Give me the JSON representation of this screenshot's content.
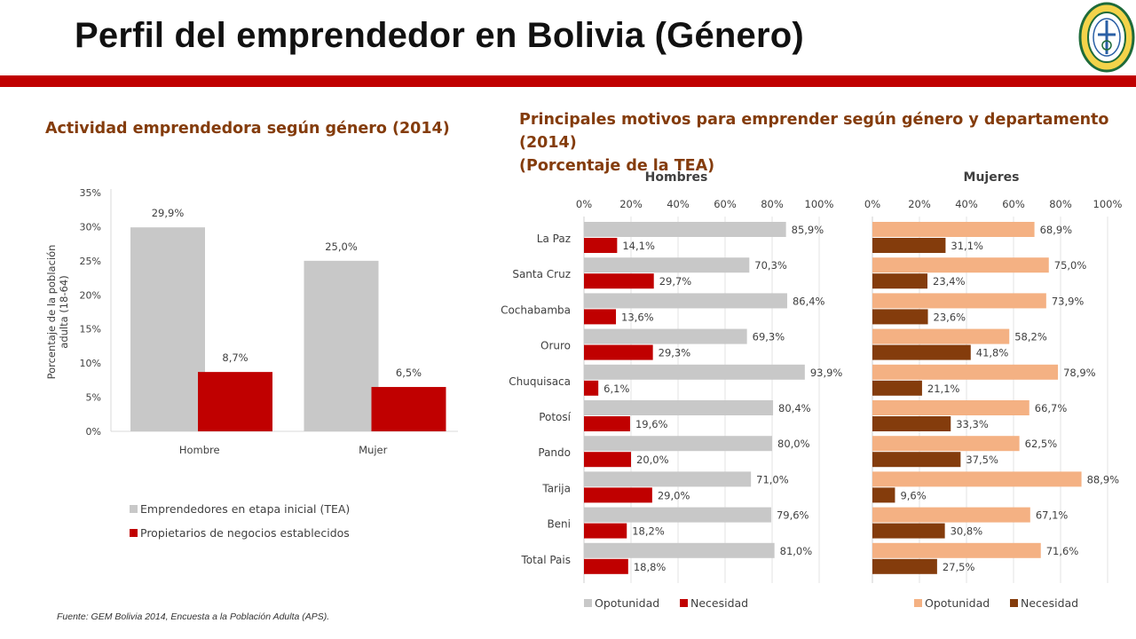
{
  "header": {
    "title": "Perfil del emprendedor en Bolivia (Género)"
  },
  "left_chart_heading": "Actividad emprendedora según género (2014)",
  "right_chart_heading_line1": "Principales motivos para emprender según género y departamento (2014)",
  "right_chart_heading_line2": "(Porcentaje de la TEA)",
  "source": "Fuente: GEM Bolivia 2014, Encuesta a la Población Adulta (APS).",
  "colors": {
    "accent_red": "#c00000",
    "heading_brown": "#843c0c",
    "gray_bar": "#c8c8c8",
    "peach_bar": "#f4b183",
    "brown_bar": "#843c0c"
  },
  "chart_data": [
    {
      "type": "bar",
      "title": "Actividad emprendedora según género (2014)",
      "categories": [
        "Hombre",
        "Mujer"
      ],
      "ylabel": "Porcentaje de la población adulta (18-64)",
      "ylim": [
        0,
        35
      ],
      "yticks": [
        "0%",
        "5%",
        "10%",
        "15%",
        "20%",
        "25%",
        "30%",
        "35%"
      ],
      "legend_position": "bottom",
      "series": [
        {
          "name": "Emprendedores en etapa inicial (TEA)",
          "values": [
            29.9,
            25.0
          ],
          "labels": [
            "29,9%",
            "25,0%"
          ],
          "color": "#c8c8c8"
        },
        {
          "name": "Propietarios de negocios establecidos",
          "values": [
            8.7,
            6.5
          ],
          "labels": [
            "8,7%",
            "6,5%"
          ],
          "color": "#c00000"
        }
      ]
    },
    {
      "type": "bar",
      "orientation": "horizontal",
      "title": "Hombres",
      "categories": [
        "La Paz",
        "Santa Cruz",
        "Cochabamba",
        "Oruro",
        "Chuquisaca",
        "Potosí",
        "Pando",
        "Tarija",
        "Beni",
        "Total Pais"
      ],
      "xlim": [
        0,
        100
      ],
      "xticks": [
        "0%",
        "20%",
        "40%",
        "60%",
        "80%",
        "100%"
      ],
      "legend_position": "bottom",
      "series": [
        {
          "name": "Opotunidad",
          "values": [
            85.9,
            70.3,
            86.4,
            69.3,
            93.9,
            80.4,
            80.0,
            71.0,
            79.6,
            81.0
          ],
          "labels": [
            "85,9%",
            "70,3%",
            "86,4%",
            "69,3%",
            "93,9%",
            "80,4%",
            "80,0%",
            "71,0%",
            "79,6%",
            "81,0%"
          ],
          "color": "#c8c8c8"
        },
        {
          "name": "Necesidad",
          "values": [
            14.1,
            29.7,
            13.6,
            29.3,
            6.1,
            19.6,
            20.0,
            29.0,
            18.2,
            18.8
          ],
          "labels": [
            "14,1%",
            "29,7%",
            "13,6%",
            "29,3%",
            "6,1%",
            "19,6%",
            "20,0%",
            "29,0%",
            "18,2%",
            "18,8%"
          ],
          "color": "#c00000"
        }
      ]
    },
    {
      "type": "bar",
      "orientation": "horizontal",
      "title": "Mujeres",
      "categories": [
        "La Paz",
        "Santa Cruz",
        "Cochabamba",
        "Oruro",
        "Chuquisaca",
        "Potosí",
        "Pando",
        "Tarija",
        "Beni",
        "Total Pais"
      ],
      "xlim": [
        0,
        100
      ],
      "xticks": [
        "0%",
        "20%",
        "40%",
        "60%",
        "80%",
        "100%"
      ],
      "legend_position": "bottom",
      "series": [
        {
          "name": "Opotunidad",
          "values": [
            68.9,
            75.0,
            73.9,
            58.2,
            78.9,
            66.7,
            62.5,
            88.9,
            67.1,
            71.6
          ],
          "labels": [
            "68,9%",
            "75,0%",
            "73,9%",
            "58,2%",
            "78,9%",
            "66,7%",
            "62,5%",
            "88,9%",
            "67,1%",
            "71,6%"
          ],
          "color": "#f4b183"
        },
        {
          "name": "Necesidad",
          "values": [
            31.1,
            23.4,
            23.6,
            41.8,
            21.1,
            33.3,
            37.5,
            9.6,
            30.8,
            27.5
          ],
          "labels": [
            "31,1%",
            "23,4%",
            "23,6%",
            "41,8%",
            "21,1%",
            "33,3%",
            "37,5%",
            "9,6%",
            "30,8%",
            "27,5%"
          ],
          "color": "#843c0c"
        }
      ]
    }
  ]
}
